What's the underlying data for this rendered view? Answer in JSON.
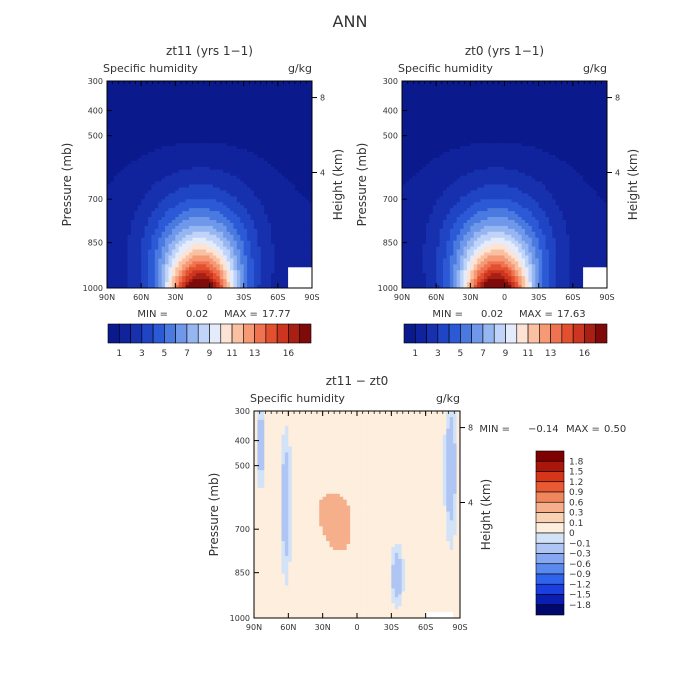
{
  "page_title": "ANN",
  "colors": {
    "top_palette": [
      "#0a1a8c",
      "#10229c",
      "#1730ae",
      "#1f44c4",
      "#2c5ad6",
      "#4a7ae0",
      "#6f98ea",
      "#96b6f2",
      "#bfd4f8",
      "#e4ecfb",
      "#fde3d4",
      "#f9c0a2",
      "#f59a75",
      "#ef7350",
      "#e3502f",
      "#cc3520",
      "#a81f14",
      "#7f0a0a"
    ],
    "diff_palette": [
      "#00086e",
      "#0a1eb4",
      "#1a3ee0",
      "#2f63ee",
      "#5a89f0",
      "#86a8f2",
      "#afc5f4",
      "#d3e3f7",
      "#fdeedd",
      "#f9d1b3",
      "#f6af8b",
      "#f0865c",
      "#e85a33",
      "#d53519",
      "#a8170a",
      "#7f0000"
    ]
  },
  "chart_data": [
    {
      "type": "heatmap",
      "panel": "top-left",
      "title": "zt11 (yrs 1−1)",
      "left_label": "Specific humidity",
      "right_label": "g/kg",
      "ylabel": "Pressure (mb)",
      "ylabel_right": "Height (km)",
      "x_ticks": [
        "90N",
        "60N",
        "30N",
        "0",
        "30S",
        "60S",
        "90S"
      ],
      "y_ticks": [
        "300",
        "400",
        "500",
        "700",
        "850",
        "1000"
      ],
      "y_ticks_right": [
        "8",
        "4"
      ],
      "xlim": [
        -90,
        90
      ],
      "ylim": [
        1000,
        300
      ],
      "min_label": "MIN =",
      "min_value": "0.02",
      "max_label": "MAX =",
      "max_value": "17.77",
      "colorbar_labels": [
        "1",
        "3",
        "5",
        "7",
        "9",
        "11",
        "13",
        "16"
      ]
    },
    {
      "type": "heatmap",
      "panel": "top-right",
      "title": "zt0 (yrs 1−1)",
      "left_label": "Specific humidity",
      "right_label": "g/kg",
      "ylabel": "Pressure (mb)",
      "ylabel_right": "Height (km)",
      "x_ticks": [
        "90N",
        "60N",
        "30N",
        "0",
        "30S",
        "60S",
        "90S"
      ],
      "y_ticks": [
        "300",
        "400",
        "500",
        "700",
        "850",
        "1000"
      ],
      "y_ticks_right": [
        "8",
        "4"
      ],
      "xlim": [
        -90,
        90
      ],
      "ylim": [
        1000,
        300
      ],
      "min_label": "MIN =",
      "min_value": "0.02",
      "max_label": "MAX =",
      "max_value": "17.63",
      "colorbar_labels": [
        "1",
        "3",
        "5",
        "7",
        "9",
        "11",
        "13",
        "16"
      ]
    },
    {
      "type": "heatmap",
      "panel": "bottom",
      "title": "zt11 − zt0",
      "left_label": "Specific humidity",
      "right_label": "g/kg",
      "ylabel": "Pressure (mb)",
      "ylabel_right": "Height (km)",
      "x_ticks": [
        "90N",
        "60N",
        "30N",
        "0",
        "30S",
        "60S",
        "90S"
      ],
      "y_ticks": [
        "300",
        "400",
        "500",
        "700",
        "850",
        "1000"
      ],
      "y_ticks_right": [
        "8",
        "4"
      ],
      "xlim": [
        -90,
        90
      ],
      "ylim": [
        1000,
        300
      ],
      "min_label": "MIN =",
      "min_value": "−0.14",
      "max_label": "MAX =",
      "max_value": "0.50",
      "colorbar_labels": [
        "1.8",
        "1.5",
        "1.2",
        "0.9",
        "0.6",
        "0.3",
        "0.1",
        "0",
        "−0.1",
        "−0.3",
        "−0.6",
        "−0.9",
        "−1.2",
        "−1.5",
        "−1.8"
      ]
    }
  ]
}
